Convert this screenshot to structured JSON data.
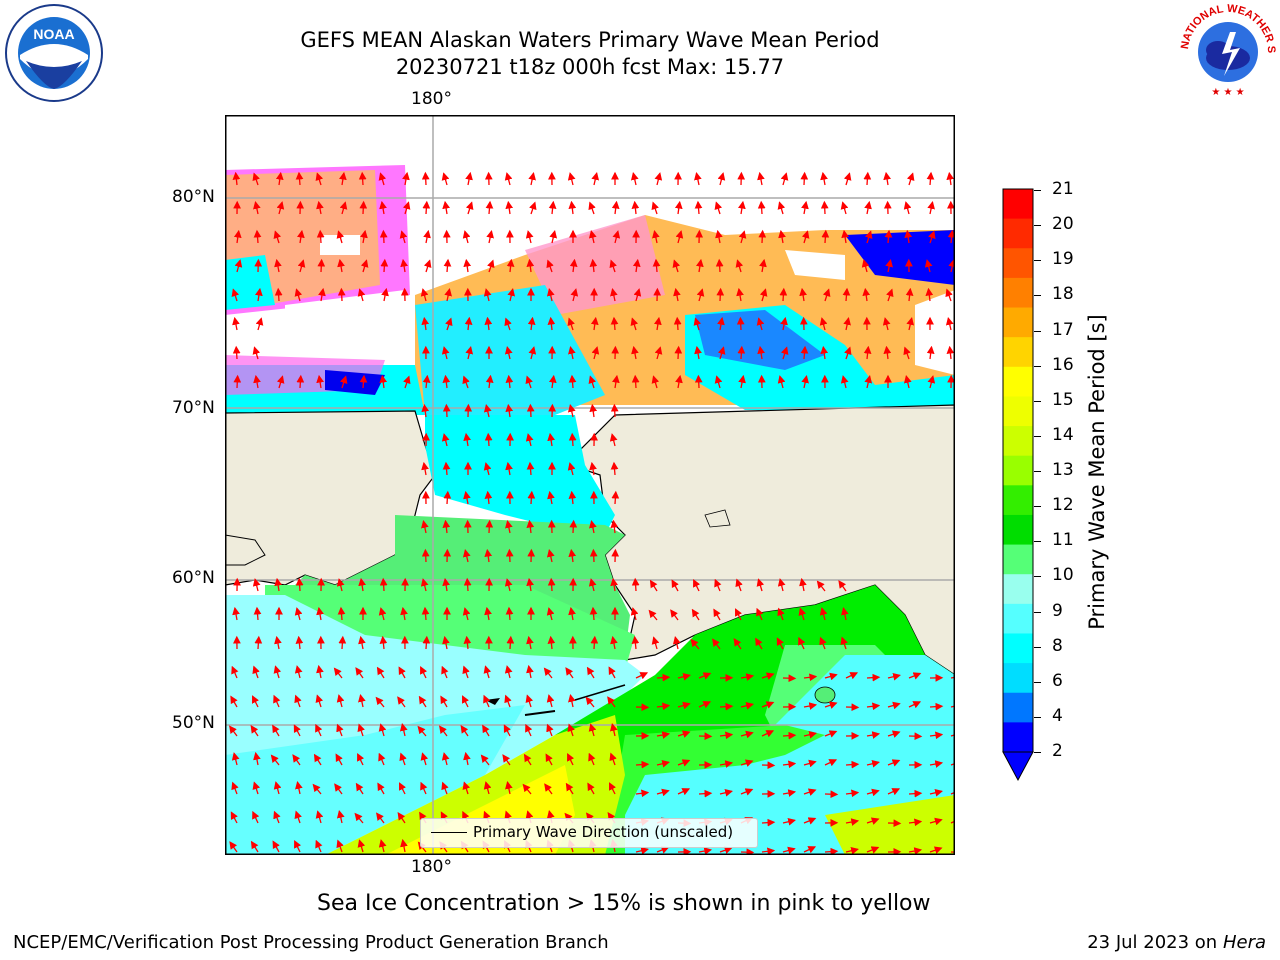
{
  "header": {
    "title_line1": "GEFS MEAN Alaskan Waters Primary Wave Mean Period",
    "title_line2": "20230721 t18z 000h fcst   Max: 15.77"
  },
  "logos": {
    "noaa_text": "NOAA",
    "nws_text": "NATIONAL WEATHER SERVICE"
  },
  "map": {
    "lon_top": "180°",
    "lon_bottom": "180°",
    "lat_labels": [
      "80°N",
      "70°N",
      "60°N",
      "50°N"
    ],
    "legend_label": "Primary Wave Direction (unscaled)",
    "colors": {
      "land": "#efecdc",
      "ocean_blue": "#00ffff",
      "light_cyan": "#99ffff",
      "mid_cyan": "#4dffff",
      "green": "#33ff33",
      "bright_green": "#00ee00",
      "yellow_green": "#ccff00",
      "yellow": "#ffff00",
      "ice_pink": "#ff77ff",
      "ice_orange": "#ffbb55",
      "dark_blue": "#0000ff",
      "arrow_red": "#ff0000"
    }
  },
  "colorbar": {
    "label": "Primary Wave Mean Period [s]",
    "ticks": [
      "21",
      "20",
      "19",
      "18",
      "17",
      "16",
      "15",
      "14",
      "13",
      "12",
      "11",
      "10",
      "9",
      "8",
      "6",
      "4",
      "2"
    ],
    "colors": [
      "#ff0000",
      "#ff2a00",
      "#ff5500",
      "#ff8000",
      "#ffaa00",
      "#ffd400",
      "#ffff00",
      "#eeff00",
      "#ccff00",
      "#99ff00",
      "#33ee00",
      "#00dd00",
      "#55ff77",
      "#99ffee",
      "#55ffff",
      "#00ffff",
      "#00ddff",
      "#0077ff",
      "#0000ff"
    ]
  },
  "footer": {
    "caption": "Sea Ice Concentration > 15% is shown in pink to yellow",
    "left": "NCEP/EMC/Verification Post Processing Product Generation Branch",
    "date": "23 Jul 2023 on ",
    "machine": "Hera"
  }
}
